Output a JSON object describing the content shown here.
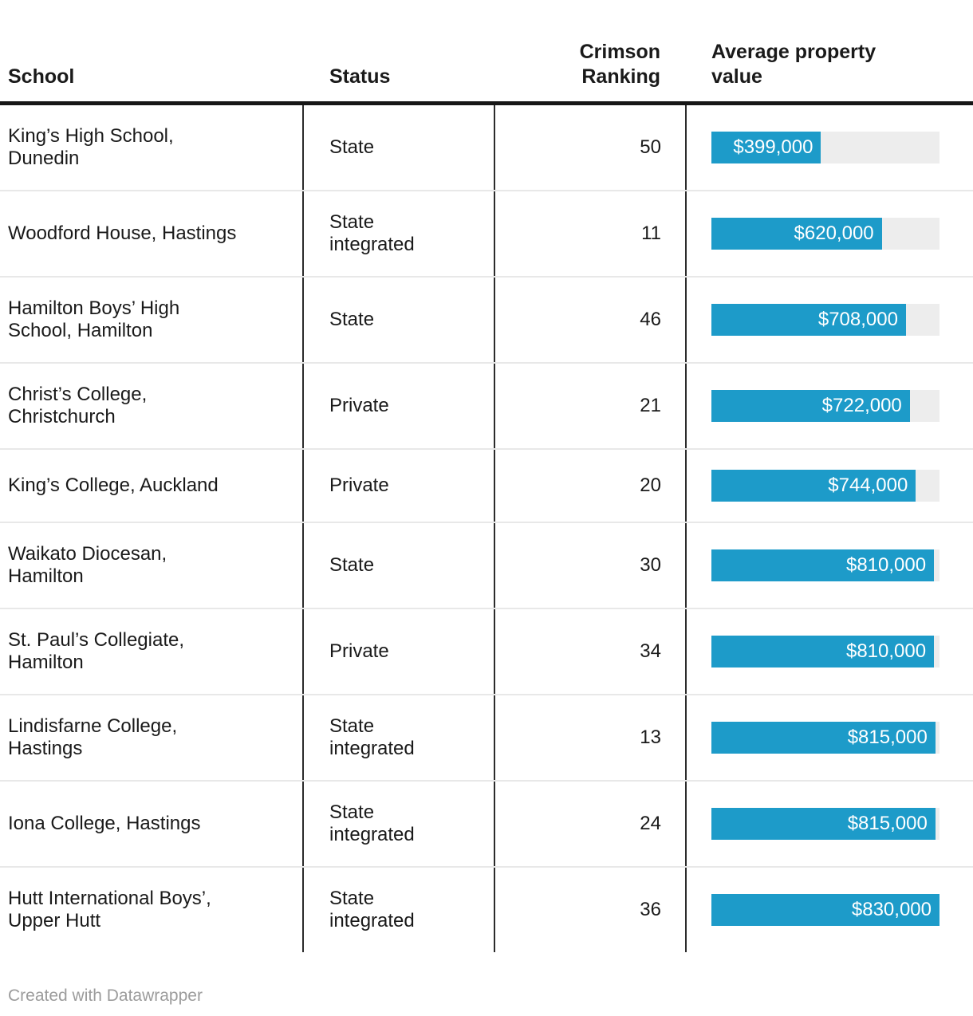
{
  "header": {
    "school": "School",
    "status": "Status",
    "ranking": "Crimson\nRanking",
    "value": "Average property\nvalue"
  },
  "chart_data": {
    "type": "table",
    "title": "",
    "columns": [
      "School",
      "Status",
      "Crimson Ranking",
      "Average property value"
    ],
    "bar_axis_max": 830000,
    "rows": [
      {
        "school": "King’s High School,\nDunedin",
        "status": "State",
        "ranking": 50,
        "value": 399000,
        "value_label": "$399,000"
      },
      {
        "school": "Woodford House, Hastings",
        "status": "State\nintegrated",
        "ranking": 11,
        "value": 620000,
        "value_label": "$620,000"
      },
      {
        "school": "Hamilton Boys’ High\nSchool, Hamilton",
        "status": "State",
        "ranking": 46,
        "value": 708000,
        "value_label": "$708,000"
      },
      {
        "school": "Christ’s College,\nChristchurch",
        "status": "Private",
        "ranking": 21,
        "value": 722000,
        "value_label": "$722,000"
      },
      {
        "school": "King’s College, Auckland",
        "status": "Private",
        "ranking": 20,
        "value": 744000,
        "value_label": "$744,000"
      },
      {
        "school": "Waikato Diocesan,\nHamilton",
        "status": "State",
        "ranking": 30,
        "value": 810000,
        "value_label": "$810,000"
      },
      {
        "school": "St. Paul’s Collegiate,\nHamilton",
        "status": "Private",
        "ranking": 34,
        "value": 810000,
        "value_label": "$810,000"
      },
      {
        "school": "Lindisfarne College,\nHastings",
        "status": "State\nintegrated",
        "ranking": 13,
        "value": 815000,
        "value_label": "$815,000"
      },
      {
        "school": "Iona College, Hastings",
        "status": "State\nintegrated",
        "ranking": 24,
        "value": 815000,
        "value_label": "$815,000"
      },
      {
        "school": "Hutt International Boys’,\nUpper Hutt",
        "status": "State\nintegrated",
        "ranking": 36,
        "value": 830000,
        "value_label": "$830,000"
      }
    ]
  },
  "colors": {
    "bar": "#1d9bc9",
    "bar_track": "#ededed",
    "text": "#1a1a1a",
    "column_divider": "#2b2b2b",
    "row_line": "#e8e8e8",
    "header_rule": "#161616",
    "credit_text": "#9c9c9c"
  },
  "footer": {
    "credit": "Created with Datawrapper"
  }
}
